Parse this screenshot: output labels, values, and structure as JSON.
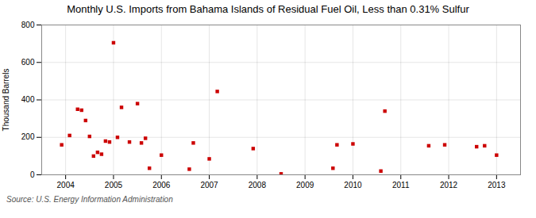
{
  "chart_data": {
    "type": "scatter",
    "title": "Monthly U.S. Imports from Bahama Islands of Residual Fuel Oil, Less than 0.31% Sulfur",
    "ylabel": "Thousand Barrels",
    "source": "Source: U.S. Energy Information Administration",
    "x": [
      2003.917,
      2004.083,
      2004.25,
      2004.333,
      2004.417,
      2004.5,
      2004.583,
      2004.667,
      2004.75,
      2004.833,
      2004.917,
      2005.0,
      2005.083,
      2005.167,
      2005.333,
      2005.5,
      2005.583,
      2005.667,
      2005.75,
      2006.0,
      2006.583,
      2006.667,
      2007.0,
      2007.167,
      2007.917,
      2008.5,
      2009.583,
      2009.667,
      2010.0,
      2010.583,
      2010.667,
      2011.583,
      2011.917,
      2012.583,
      2012.75,
      2013.0
    ],
    "values": [
      160,
      210,
      350,
      345,
      290,
      205,
      100,
      120,
      110,
      180,
      175,
      705,
      200,
      360,
      175,
      380,
      170,
      195,
      35,
      105,
      30,
      170,
      85,
      445,
      140,
      5,
      35,
      160,
      165,
      20,
      340,
      155,
      160,
      150,
      155,
      105
    ],
    "color": "#cc0000",
    "marker": "square",
    "xlim": [
      2003.5,
      2013.5
    ],
    "xticks": [
      2004,
      2005,
      2006,
      2007,
      2008,
      2009,
      2010,
      2011,
      2012,
      2013
    ],
    "ylim": [
      0,
      800
    ],
    "yticks": [
      0,
      200,
      400,
      600,
      800
    ],
    "grid": true
  }
}
